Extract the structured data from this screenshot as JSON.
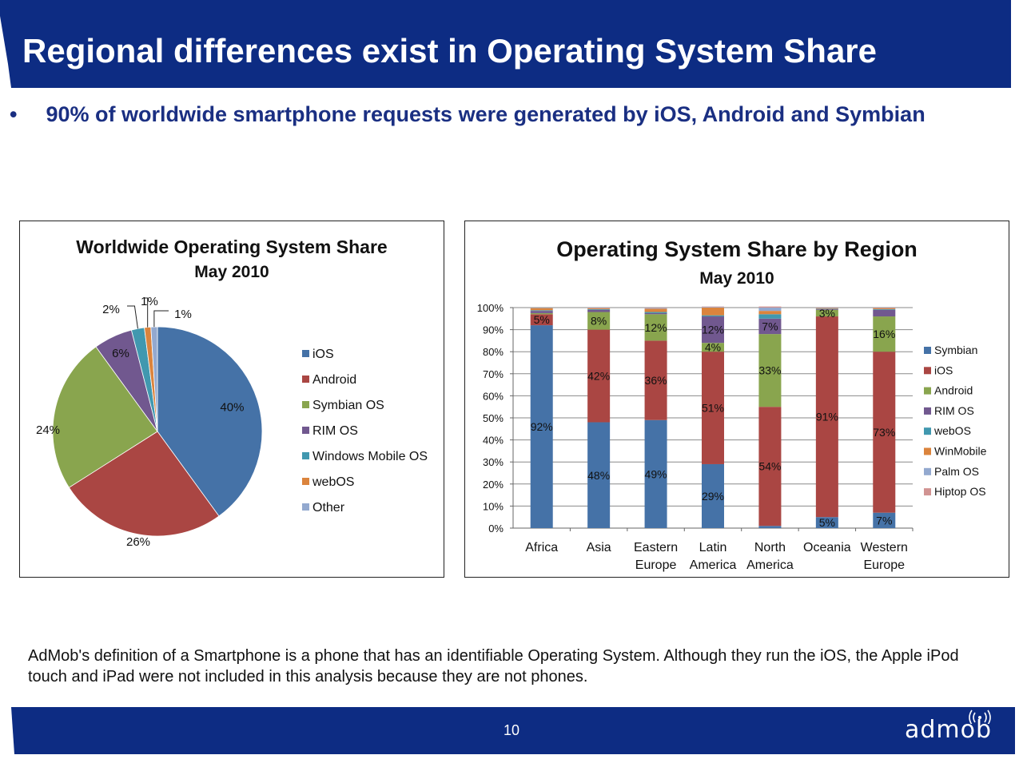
{
  "header": {
    "title": "Regional differences exist in Operating System Share",
    "bullet": "90% of worldwide smartphone requests were generated by iOS, Android and Symbian",
    "bar_color": "#0d2c83"
  },
  "footer": {
    "note": "AdMob's definition of a Smartphone is a phone that has an identifiable Operating System. Although they run the iOS, the Apple iPod touch and iPad were not included in this analysis because they are not phones.",
    "page_number": "10",
    "logo_text": "admob"
  },
  "chart_data": [
    {
      "type": "pie",
      "title": "Worldwide Operating System Share",
      "subtitle": "May 2010",
      "legend_position": "right",
      "slices": [
        {
          "name": "iOS",
          "value": 40,
          "label": "40%",
          "color": "#4572a7"
        },
        {
          "name": "Android",
          "value": 26,
          "label": "26%",
          "color": "#aa4643"
        },
        {
          "name": "Symbian OS",
          "value": 24,
          "label": "24%",
          "color": "#89a54e"
        },
        {
          "name": "RIM OS",
          "value": 6,
          "label": "6%",
          "color": "#71588f"
        },
        {
          "name": "Windows Mobile OS",
          "value": 2,
          "label": "2%",
          "color": "#4198af"
        },
        {
          "name": "webOS",
          "value": 1,
          "label": "1%",
          "color": "#db843d"
        },
        {
          "name": "Other",
          "value": 1,
          "label": "1%",
          "color": "#93a9cf"
        }
      ]
    },
    {
      "type": "bar",
      "stacked": true,
      "title": "Operating System Share by Region",
      "subtitle": "May 2010",
      "legend_position": "right",
      "ylim": [
        0,
        100
      ],
      "y_ticks": [
        "0%",
        "10%",
        "20%",
        "30%",
        "40%",
        "50%",
        "60%",
        "70%",
        "80%",
        "90%",
        "100%"
      ],
      "grid": true,
      "categories": [
        [
          "Africa"
        ],
        [
          "Asia"
        ],
        [
          "Eastern",
          "Europe"
        ],
        [
          "Latin",
          "America"
        ],
        [
          "North",
          "America"
        ],
        [
          "Oceania"
        ],
        [
          "Western",
          "Europe"
        ]
      ],
      "series": [
        {
          "name": "Symbian",
          "color": "#4572a7",
          "values": [
            92,
            48,
            49,
            29,
            1,
            5,
            7
          ],
          "labels": [
            "92%",
            "48%",
            "49%",
            "29%",
            "",
            "5%",
            "7%"
          ]
        },
        {
          "name": "iOS",
          "color": "#aa4643",
          "values": [
            5,
            42,
            36,
            51,
            54,
            91,
            73
          ],
          "labels": [
            "5%",
            "42%",
            "36%",
            "51%",
            "54%",
            "91%",
            "73%"
          ]
        },
        {
          "name": "Android",
          "color": "#89a54e",
          "values": [
            0.5,
            8,
            12,
            4,
            33,
            3,
            16
          ],
          "labels": [
            "",
            "8%",
            "12%",
            "4%",
            "33%",
            "3%",
            "16%"
          ]
        },
        {
          "name": "RIM OS",
          "color": "#71588f",
          "values": [
            1,
            1,
            0.5,
            12,
            7,
            0.3,
            3
          ],
          "labels": [
            "",
            "",
            "",
            "12%",
            "7%",
            "",
            ""
          ]
        },
        {
          "name": "webOS",
          "color": "#4198af",
          "values": [
            0.3,
            0.3,
            0.5,
            0.5,
            2,
            0.2,
            0.3
          ],
          "labels": [
            "",
            "",
            "",
            "",
            "",
            "",
            ""
          ]
        },
        {
          "name": "WinMobile",
          "color": "#db843d",
          "values": [
            1,
            0.4,
            1.5,
            3.5,
            1.5,
            0.3,
            0.5
          ],
          "labels": [
            "",
            "",
            "",
            "",
            "",
            "",
            ""
          ]
        },
        {
          "name": "Palm OS",
          "color": "#93a9cf",
          "values": [
            0.2,
            0.2,
            0.3,
            0.3,
            1.5,
            0.1,
            0.1
          ],
          "labels": [
            "",
            "",
            "",
            "",
            "",
            "",
            ""
          ]
        },
        {
          "name": "Hiptop OS",
          "color": "#d19392",
          "values": [
            0,
            0.1,
            0.2,
            0.2,
            0.5,
            0.1,
            0.1
          ],
          "labels": [
            "",
            "",
            "",
            "",
            "",
            "",
            ""
          ]
        }
      ]
    }
  ]
}
